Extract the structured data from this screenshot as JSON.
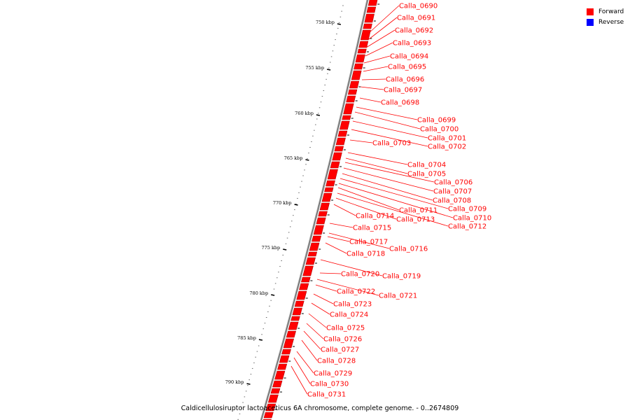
{
  "caption": "Caldicellulosiruptor lactoaceticus 6A chromosome, complete genome. - 0..2674809",
  "legend": [
    {
      "label": "Forward",
      "color": "#ff0000"
    },
    {
      "label": "Reverse",
      "color": "#0000ff"
    }
  ],
  "scale_labels": [
    "750 kbp",
    "755 kbp",
    "760 kbp",
    "765 kbp",
    "770 kbp",
    "775 kbp",
    "780 kbp",
    "785 kbp",
    "790 kbp"
  ],
  "genes": [
    "Calla_0690",
    "Calla_0691",
    "Calla_0692",
    "Calla_0693",
    "Calla_0694",
    "Calla_0695",
    "Calla_0696",
    "Calla_0697",
    "Calla_0698",
    "Calla_0699",
    "Calla_0700",
    "Calla_0701",
    "Calla_0702",
    "Calla_0703",
    "Calla_0704",
    "Calla_0705",
    "Calla_0706",
    "Calla_0707",
    "Calla_0708",
    "Calla_0709",
    "Calla_0710",
    "Calla_0711",
    "Calla_0712",
    "Calla_0713",
    "Calla_0714",
    "Calla_0715",
    "Calla_0716",
    "Calla_0717",
    "Calla_0718",
    "Calla_0719",
    "Calla_0720",
    "Calla_0721",
    "Calla_0722",
    "Calla_0723",
    "Calla_0724",
    "Calla_0725",
    "Calla_0726",
    "Calla_0727",
    "Calla_0728",
    "Calla_0729",
    "Calla_0730",
    "Calla_0731"
  ],
  "colors": {
    "gene": "#ff0000",
    "gene_dark": "#b00000",
    "backbone": "#888888"
  }
}
